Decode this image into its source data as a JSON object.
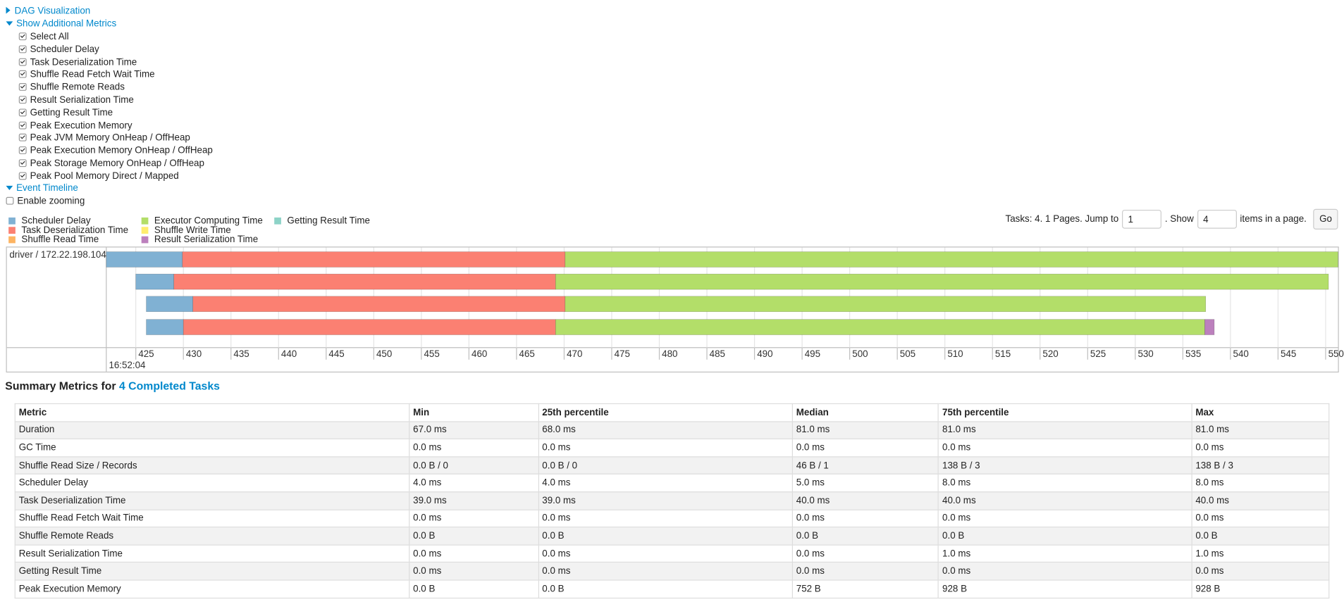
{
  "nav": {
    "dag": "DAG Visualization",
    "metrics": "Show Additional Metrics",
    "metric_options": [
      "Select All",
      "Scheduler Delay",
      "Task Deserialization Time",
      "Shuffle Read Fetch Wait Time",
      "Shuffle Remote Reads",
      "Result Serialization Time",
      "Getting Result Time",
      "Peak Execution Memory",
      "Peak JVM Memory OnHeap / OffHeap",
      "Peak Execution Memory OnHeap / OffHeap",
      "Peak Storage Memory OnHeap / OffHeap",
      "Peak Pool Memory Direct / Mapped"
    ],
    "timeline": "Event Timeline",
    "zoom": "Enable zooming"
  },
  "timeline": {
    "legend": [
      {
        "name": "Scheduler Delay",
        "color": "#80b1d3"
      },
      {
        "name": "Task Deserialization Time",
        "color": "#fb8072"
      },
      {
        "name": "Shuffle Read Time",
        "color": "#fdb462"
      },
      {
        "name": "Executor Computing Time",
        "color": "#b3de69"
      },
      {
        "name": "Shuffle Write Time",
        "color": "#ffed6f"
      },
      {
        "name": "Result Serialization Time",
        "color": "#bc80bd"
      },
      {
        "name": "Getting Result Time",
        "color": "#8dd3c7"
      }
    ],
    "pagination": {
      "prefix": "Tasks: 4. 1 Pages. Jump to",
      "page": "1",
      "show": ". Show",
      "size": "4",
      "suffix": "items in a page.",
      "button": "Go"
    },
    "executor": "driver / 172.22.198.104",
    "xlim": [
      421.9,
      551.3
    ],
    "xticks": [
      425,
      430,
      435,
      440,
      445,
      450,
      455,
      460,
      465,
      470,
      475,
      480,
      485,
      490,
      495,
      500,
      505,
      510,
      515,
      520,
      525,
      530,
      535,
      540,
      545,
      550
    ],
    "time_label": "16:52:04",
    "tasks": [
      {
        "start": 421.9,
        "durations": [
          8.0,
          40.2,
          0,
          81.2,
          0,
          0,
          0
        ]
      },
      {
        "start": 425.0,
        "durations": [
          4.0,
          40.1,
          0,
          81.2,
          0,
          0,
          0
        ]
      },
      {
        "start": 426.1,
        "durations": [
          4.9,
          39.1,
          0,
          67.3,
          0,
          0,
          0
        ]
      },
      {
        "start": 426.1,
        "durations": [
          3.9,
          39.1,
          0,
          68.2,
          0,
          1.0,
          0
        ]
      }
    ]
  },
  "summary": {
    "title": "Summary Metrics for",
    "link": "4 Completed Tasks",
    "table": {
      "columns": [
        "Metric",
        "Min",
        "25th percentile",
        "Median",
        "75th percentile",
        "Max"
      ],
      "rows": [
        [
          "Duration",
          "67.0 ms",
          "68.0 ms",
          "81.0 ms",
          "81.0 ms",
          "81.0 ms"
        ],
        [
          "GC Time",
          "0.0 ms",
          "0.0 ms",
          "0.0 ms",
          "0.0 ms",
          "0.0 ms"
        ],
        [
          "Shuffle Read Size / Records",
          "0.0 B / 0",
          "0.0 B / 0",
          "46 B / 1",
          "138 B / 3",
          "138 B / 3"
        ],
        [
          "Scheduler Delay",
          "4.0 ms",
          "4.0 ms",
          "5.0 ms",
          "8.0 ms",
          "8.0 ms"
        ],
        [
          "Task Deserialization Time",
          "39.0 ms",
          "39.0 ms",
          "40.0 ms",
          "40.0 ms",
          "40.0 ms"
        ],
        [
          "Shuffle Read Fetch Wait Time",
          "0.0 ms",
          "0.0 ms",
          "0.0 ms",
          "0.0 ms",
          "0.0 ms"
        ],
        [
          "Shuffle Remote Reads",
          "0.0 B",
          "0.0 B",
          "0.0 B",
          "0.0 B",
          "0.0 B"
        ],
        [
          "Result Serialization Time",
          "0.0 ms",
          "0.0 ms",
          "0.0 ms",
          "1.0 ms",
          "1.0 ms"
        ],
        [
          "Getting Result Time",
          "0.0 ms",
          "0.0 ms",
          "0.0 ms",
          "0.0 ms",
          "0.0 ms"
        ],
        [
          "Peak Execution Memory",
          "0.0 B",
          "0.0 B",
          "752 B",
          "928 B",
          "928 B"
        ]
      ]
    }
  }
}
